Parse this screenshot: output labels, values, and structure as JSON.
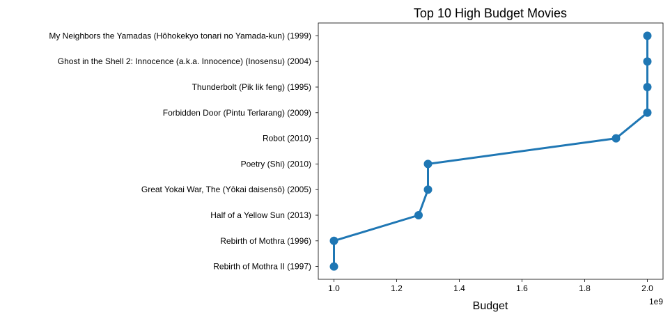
{
  "chart_data": {
    "type": "line",
    "title": "Top 10 High Budget Movies",
    "xlabel": "Budget",
    "ylabel": "",
    "x_offset_label": "1e9",
    "x_scale": 1000000000,
    "xlim": [
      0.95,
      2.05
    ],
    "xticks": [
      1.0,
      1.2,
      1.4,
      1.6,
      1.8,
      2.0
    ],
    "xtick_labels": [
      "1.0",
      "1.2",
      "1.4",
      "1.6",
      "1.8",
      "2.0"
    ],
    "categories": [
      "My Neighbors the Yamadas (Hôhokekyo tonari no Yamada-kun) (1999)",
      "Ghost in the Shell 2: Innocence (a.k.a. Innocence) (Inosensu) (2004)",
      "Thunderbolt (Pik lik feng) (1995)",
      "Forbidden Door (Pintu Terlarang) (2009)",
      "Robot (2010)",
      "Poetry (Shi) (2010)",
      "Great Yokai War, The (Yôkai daisensô) (2005)",
      "Half of a Yellow Sun (2013)",
      "Rebirth of Mothra (1996)",
      "Rebirth of Mothra II (1997)"
    ],
    "values": [
      2000000000,
      2000000000,
      2000000000,
      2000000000,
      1900000000,
      1300000000,
      1300000000,
      1270000000,
      1000000000,
      1000000000
    ],
    "grid": false,
    "color": "#1f77b4"
  }
}
